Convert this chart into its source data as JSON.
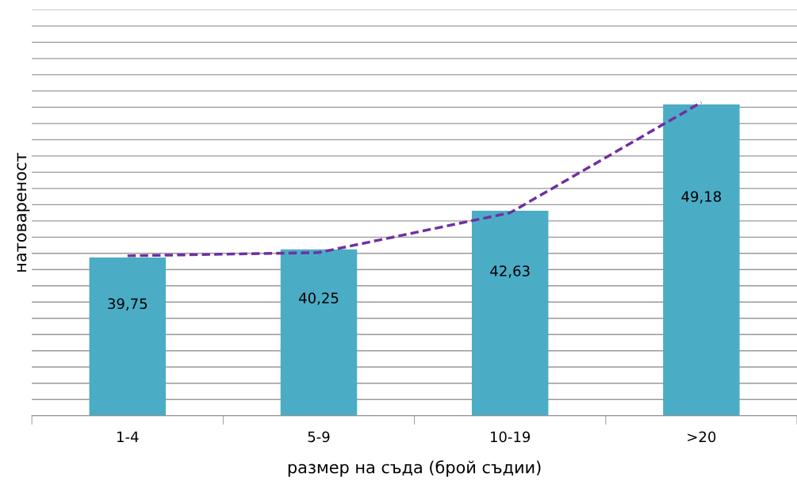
{
  "chart_data": {
    "type": "bar",
    "xlabel": "размер на съда (брой съдии)",
    "ylabel": "натовареност",
    "categories": [
      "1-4",
      "5-9",
      "10-19",
      ">20"
    ],
    "series": [
      {
        "color": "#4bacc6",
        "values": [
          39.75,
          40.25,
          42.63,
          49.18
        ],
        "value_labels": [
          "39,75",
          "40,25",
          "42,63",
          "49,18"
        ]
      },
      {
        "type": "line",
        "color": "#7030a0",
        "line_style": "dashed",
        "values": [
          39.85,
          40.05,
          42.5,
          49.3
        ]
      }
    ],
    "ylim": [
      30,
      55
    ],
    "tick_labels": "x",
    "grid": "y",
    "legend": false
  }
}
